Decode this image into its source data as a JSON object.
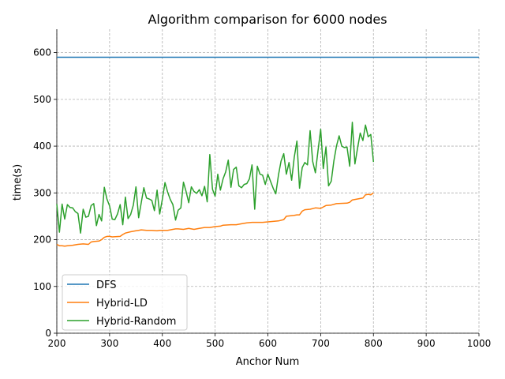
{
  "chart_data": {
    "type": "line",
    "title": "Algorithm comparison for 6000 nodes",
    "xlabel": "Anchor Num",
    "ylabel": "time(s)",
    "xlim": [
      200,
      1000
    ],
    "ylim": [
      0,
      650
    ],
    "xticks": [
      200,
      300,
      400,
      500,
      600,
      700,
      800,
      900,
      1000
    ],
    "yticks": [
      0,
      100,
      200,
      300,
      400,
      500,
      600
    ],
    "grid": true,
    "legend_position": "bottom-left",
    "series": [
      {
        "name": "DFS",
        "color": "#1f77b4",
        "x": [
          200,
          1000
        ],
        "y": [
          590,
          590
        ]
      },
      {
        "name": "Hybrid-LD",
        "color": "#ff7f0e",
        "x": [
          200,
          205,
          210,
          215,
          220,
          230,
          240,
          250,
          260,
          265,
          270,
          280,
          285,
          290,
          295,
          300,
          305,
          320,
          325,
          330,
          340,
          350,
          355,
          360,
          370,
          380,
          390,
          395,
          400,
          410,
          420,
          425,
          430,
          440,
          450,
          460,
          470,
          480,
          490,
          500,
          510,
          515,
          530,
          540,
          550,
          560,
          570,
          580,
          590,
          600,
          610,
          620,
          630,
          635,
          650,
          655,
          660,
          665,
          670,
          680,
          690,
          700,
          705,
          710,
          720,
          730,
          750,
          755,
          760,
          770,
          780,
          785,
          790,
          795,
          800
        ],
        "y": [
          190,
          187,
          187,
          186,
          187,
          188,
          190,
          191,
          190,
          195,
          196,
          197,
          200,
          205,
          207,
          207,
          206,
          207,
          211,
          214,
          217,
          219,
          220,
          221,
          220,
          220,
          219,
          220,
          220,
          220,
          222,
          223,
          223,
          222,
          224,
          222,
          224,
          226,
          226,
          228,
          229,
          231,
          232,
          232,
          234,
          236,
          237,
          237,
          237,
          238,
          239,
          240,
          243,
          250,
          252,
          253,
          253,
          261,
          264,
          265,
          268,
          267,
          270,
          273,
          274,
          277,
          278,
          280,
          285,
          287,
          289,
          296,
          297,
          296,
          300
        ]
      },
      {
        "name": "Hybrid-Random",
        "color": "#2ca02c",
        "x": [
          200,
          205,
          210,
          215,
          220,
          225,
          230,
          235,
          240,
          245,
          250,
          255,
          260,
          265,
          270,
          275,
          280,
          285,
          290,
          295,
          300,
          305,
          310,
          315,
          320,
          325,
          330,
          335,
          340,
          345,
          350,
          355,
          360,
          365,
          370,
          375,
          380,
          385,
          390,
          395,
          400,
          405,
          410,
          415,
          420,
          425,
          430,
          435,
          440,
          445,
          450,
          455,
          460,
          465,
          470,
          475,
          480,
          485,
          490,
          495,
          500,
          505,
          510,
          515,
          520,
          525,
          530,
          535,
          540,
          545,
          550,
          555,
          560,
          565,
          570,
          575,
          580,
          585,
          590,
          595,
          600,
          605,
          610,
          615,
          620,
          625,
          630,
          635,
          640,
          645,
          650,
          655,
          660,
          665,
          670,
          675,
          680,
          685,
          690,
          695,
          700,
          705,
          710,
          715,
          720,
          725,
          730,
          735,
          740,
          745,
          750,
          755,
          760,
          765,
          770,
          775,
          780,
          785,
          790,
          795,
          800
        ],
        "y": [
          276,
          216,
          276,
          244,
          275,
          269,
          268,
          260,
          256,
          214,
          265,
          248,
          250,
          273,
          277,
          230,
          254,
          240,
          312,
          287,
          272,
          244,
          243,
          255,
          275,
          232,
          291,
          245,
          254,
          274,
          313,
          247,
          279,
          311,
          289,
          287,
          284,
          262,
          306,
          255,
          287,
          322,
          302,
          286,
          275,
          242,
          263,
          268,
          323,
          303,
          279,
          313,
          303,
          299,
          307,
          294,
          314,
          281,
          382,
          308,
          293,
          340,
          306,
          330,
          345,
          370,
          312,
          350,
          355,
          315,
          311,
          318,
          320,
          330,
          360,
          265,
          357,
          340,
          338,
          318,
          340,
          325,
          310,
          298,
          338,
          368,
          384,
          340,
          365,
          327,
          376,
          411,
          310,
          354,
          365,
          360,
          433,
          367,
          343,
          390,
          436,
          352,
          398,
          315,
          325,
          368,
          400,
          422,
          400,
          397,
          398,
          357,
          451,
          362,
          396,
          428,
          412,
          445,
          420,
          425,
          366
        ]
      }
    ]
  }
}
